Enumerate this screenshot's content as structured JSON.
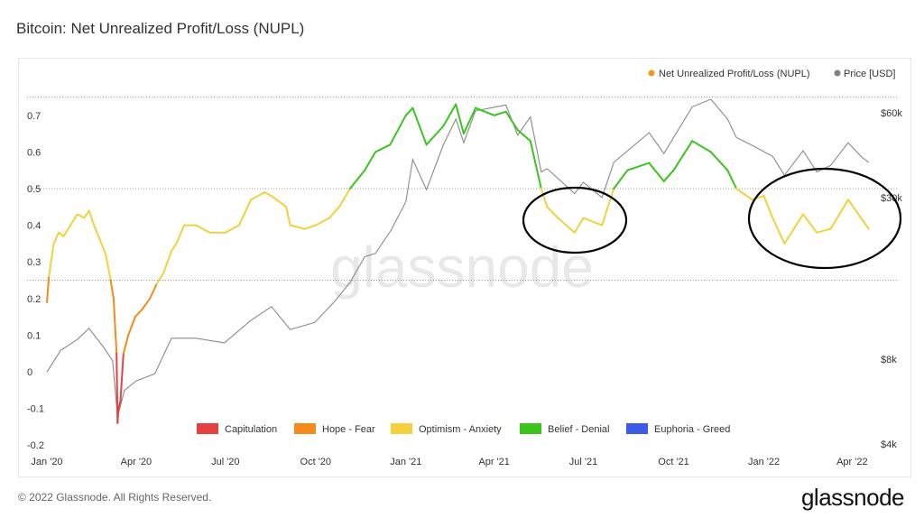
{
  "page": {
    "title": "Bitcoin: Net Unrealized Profit/Loss (NUPL)",
    "copyright": "© 2022 Glassnode. All Rights Reserved.",
    "brand": "glassnode",
    "watermark": "glassnode"
  },
  "chart_data": {
    "type": "line",
    "title": "Bitcoin: Net Unrealized Profit/Loss (NUPL)",
    "legend_top": [
      {
        "label": "Net Unrealized Profit/Loss (NUPL)",
        "color": "#f7931a"
      },
      {
        "label": "Price [USD]",
        "color": "#808080"
      }
    ],
    "legend_bottom": [
      {
        "label": "Capitulation",
        "color": "#e64141"
      },
      {
        "label": "Hope - Fear",
        "color": "#f58b1f"
      },
      {
        "label": "Optimism - Anxiety",
        "color": "#f2d13d"
      },
      {
        "label": "Belief - Denial",
        "color": "#3bc41e"
      },
      {
        "label": "Euphoria - Greed",
        "color": "#3d5ce6"
      }
    ],
    "zones": [
      {
        "name": "Capitulation",
        "from": -1.0,
        "to": 0.0,
        "color": "#e64141"
      },
      {
        "name": "Hope - Fear",
        "from": 0.0,
        "to": 0.25,
        "color": "#f58b1f"
      },
      {
        "name": "Optimism - Anxiety",
        "from": 0.25,
        "to": 0.5,
        "color": "#f2d13d"
      },
      {
        "name": "Belief - Denial",
        "from": 0.5,
        "to": 0.75,
        "color": "#3bc41e"
      },
      {
        "name": "Euphoria - Greed",
        "from": 0.75,
        "to": 1.0,
        "color": "#3d5ce6"
      }
    ],
    "x_ticks": [
      "Jan '20",
      "Apr '20",
      "Jul '20",
      "Oct '20",
      "Jan '21",
      "Apr '21",
      "Jul '21",
      "Oct '21",
      "Jan '22",
      "Apr '22"
    ],
    "x_range": [
      "2020-01-01",
      "2022-04-20"
    ],
    "y_left": {
      "ticks": [
        -0.2,
        -0.1,
        0,
        0.1,
        0.2,
        0.3,
        0.4,
        0.5,
        0.6,
        0.7
      ],
      "range": [
        -0.2,
        0.75
      ]
    },
    "y_right": {
      "ticks": [
        "$4k",
        "$8k",
        "$30k",
        "$60k"
      ],
      "values": [
        4000,
        8000,
        30000,
        60000
      ],
      "scale": "log",
      "range": [
        4000,
        80000
      ]
    },
    "dotted_gridlines": [
      0.75,
      0.5,
      0.25
    ],
    "nupl": {
      "x": [
        "2020-01-01",
        "2020-01-03",
        "2020-01-08",
        "2020-01-13",
        "2020-01-18",
        "2020-01-25",
        "2020-02-01",
        "2020-02-08",
        "2020-02-13",
        "2020-02-18",
        "2020-02-24",
        "2020-03-01",
        "2020-03-06",
        "2020-03-09",
        "2020-03-12",
        "2020-03-13",
        "2020-03-14",
        "2020-03-16",
        "2020-03-19",
        "2020-03-24",
        "2020-03-31",
        "2020-04-07",
        "2020-04-15",
        "2020-04-22",
        "2020-04-29",
        "2020-05-07",
        "2020-05-12",
        "2020-05-20",
        "2020-06-01",
        "2020-06-15",
        "2020-07-01",
        "2020-07-15",
        "2020-07-27",
        "2020-08-10",
        "2020-08-17",
        "2020-09-01",
        "2020-09-05",
        "2020-09-20",
        "2020-10-01",
        "2020-10-15",
        "2020-10-25",
        "2020-11-05",
        "2020-11-20",
        "2020-12-01",
        "2020-12-16",
        "2021-01-01",
        "2021-01-08",
        "2021-01-22",
        "2021-02-08",
        "2021-02-21",
        "2021-03-01",
        "2021-03-13",
        "2021-04-01",
        "2021-04-13",
        "2021-04-25",
        "2021-05-08",
        "2021-05-19",
        "2021-05-25",
        "2021-06-05",
        "2021-06-22",
        "2021-07-01",
        "2021-07-20",
        "2021-08-01",
        "2021-08-15",
        "2021-09-06",
        "2021-09-21",
        "2021-10-01",
        "2021-10-20",
        "2021-11-08",
        "2021-11-25",
        "2021-12-04",
        "2021-12-20",
        "2022-01-01",
        "2022-01-10",
        "2022-01-22",
        "2022-02-10",
        "2022-02-24",
        "2022-03-10",
        "2022-03-28",
        "2022-04-10",
        "2022-04-18"
      ],
      "y": [
        0.19,
        0.26,
        0.35,
        0.38,
        0.37,
        0.4,
        0.43,
        0.42,
        0.44,
        0.4,
        0.36,
        0.32,
        0.25,
        0.2,
        0.05,
        -0.14,
        -0.1,
        -0.08,
        0.05,
        0.1,
        0.15,
        0.17,
        0.2,
        0.24,
        0.27,
        0.33,
        0.35,
        0.4,
        0.4,
        0.38,
        0.38,
        0.4,
        0.47,
        0.49,
        0.48,
        0.45,
        0.4,
        0.39,
        0.4,
        0.42,
        0.45,
        0.5,
        0.55,
        0.6,
        0.62,
        0.7,
        0.72,
        0.62,
        0.67,
        0.73,
        0.65,
        0.72,
        0.7,
        0.71,
        0.66,
        0.63,
        0.5,
        0.45,
        0.42,
        0.38,
        0.42,
        0.4,
        0.5,
        0.55,
        0.57,
        0.52,
        0.55,
        0.63,
        0.6,
        0.55,
        0.5,
        0.47,
        0.48,
        0.42,
        0.35,
        0.43,
        0.38,
        0.39,
        0.47,
        0.42,
        0.39
      ]
    },
    "price": {
      "x": [
        "2020-01-01",
        "2020-01-15",
        "2020-02-01",
        "2020-02-13",
        "2020-02-28",
        "2020-03-08",
        "2020-03-13",
        "2020-03-20",
        "2020-04-01",
        "2020-04-20",
        "2020-05-07",
        "2020-05-20",
        "2020-06-01",
        "2020-06-30",
        "2020-07-27",
        "2020-08-17",
        "2020-09-05",
        "2020-09-30",
        "2020-10-21",
        "2020-11-05",
        "2020-11-20",
        "2020-12-01",
        "2020-12-17",
        "2021-01-01",
        "2021-01-08",
        "2021-01-22",
        "2021-02-08",
        "2021-02-21",
        "2021-03-01",
        "2021-03-13",
        "2021-04-13",
        "2021-04-25",
        "2021-05-08",
        "2021-05-19",
        "2021-05-25",
        "2021-06-22",
        "2021-07-01",
        "2021-07-20",
        "2021-08-01",
        "2021-09-06",
        "2021-09-21",
        "2021-10-20",
        "2021-11-08",
        "2021-11-25",
        "2021-12-04",
        "2021-12-20",
        "2022-01-10",
        "2022-01-22",
        "2022-02-10",
        "2022-02-24",
        "2022-03-10",
        "2022-03-28",
        "2022-04-10",
        "2022-04-18"
      ],
      "y": [
        7200,
        8600,
        9400,
        10300,
        8800,
        7900,
        5000,
        6200,
        6700,
        7100,
        9500,
        9500,
        9500,
        9150,
        11000,
        12300,
        10200,
        10800,
        12900,
        15000,
        18500,
        19000,
        23000,
        29000,
        41000,
        32000,
        46000,
        57000,
        47000,
        61000,
        64000,
        50000,
        58000,
        37000,
        38000,
        31000,
        34000,
        30000,
        40000,
        51000,
        43000,
        63000,
        67000,
        57000,
        49000,
        46000,
        42000,
        36000,
        44000,
        37000,
        39000,
        47000,
        42000,
        40000
      ]
    }
  }
}
